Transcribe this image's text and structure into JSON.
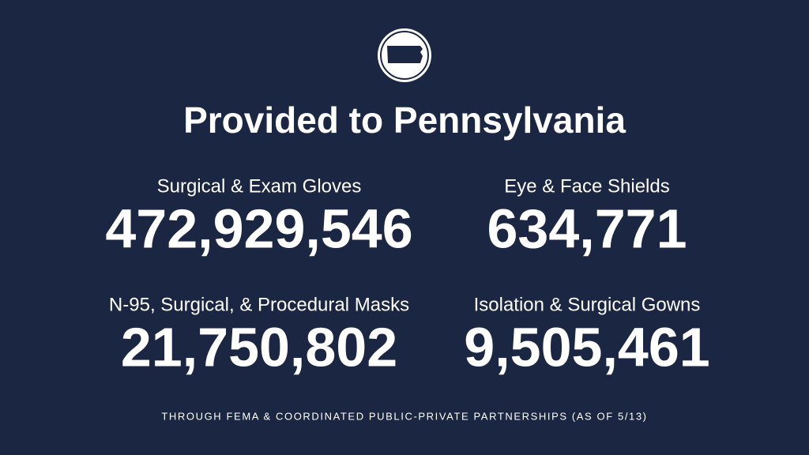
{
  "header": {
    "title": "Provided to Pennsylvania"
  },
  "stats": [
    {
      "label": "Surgical & Exam Gloves",
      "value": "472,929,546"
    },
    {
      "label": "Eye & Face Shields",
      "value": "634,771"
    },
    {
      "label": "N-95, Surgical, & Procedural Masks",
      "value": "21,750,802"
    },
    {
      "label": "Isolation & Surgical Gowns",
      "value": "9,505,461"
    }
  ],
  "footer": {
    "note": "THROUGH FEMA & COORDINATED PUBLIC-PRIVATE PARTNERSHIPS (AS OF 5/13)"
  }
}
